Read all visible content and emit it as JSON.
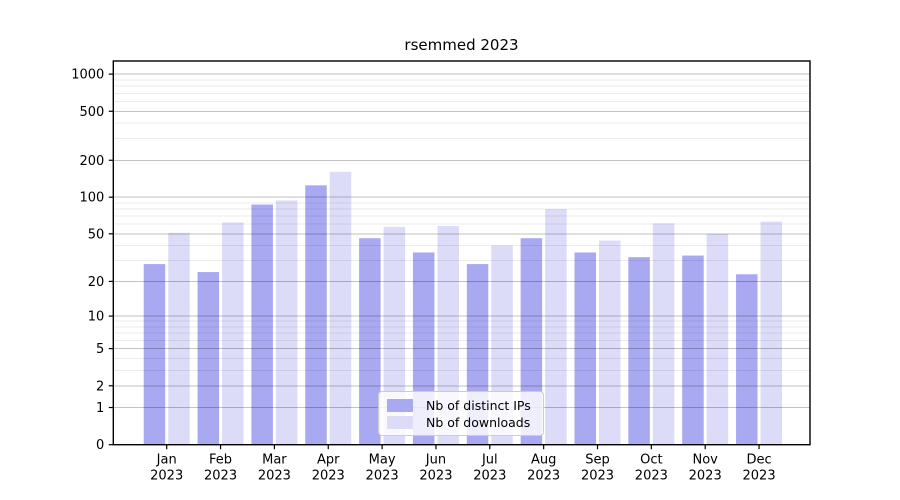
{
  "figure": {
    "title": "rsemmed 2023"
  },
  "chart_data": {
    "type": "bar",
    "title": "rsemmed 2023",
    "categories": [
      "Jan 2023",
      "Feb 2023",
      "Mar 2023",
      "Apr 2023",
      "May 2023",
      "Jun 2023",
      "Jul 2023",
      "Aug 2023",
      "Sep 2023",
      "Oct 2023",
      "Nov 2023",
      "Dec 2023"
    ],
    "series": [
      {
        "name": "Nb of distinct IPs",
        "color": "#a9a9f2",
        "values": [
          28,
          24,
          87,
          125,
          46,
          35,
          28,
          46,
          35,
          32,
          33,
          23
        ]
      },
      {
        "name": "Nb of downloads",
        "color": "#dcdcf8",
        "values": [
          51,
          62,
          94,
          161,
          57,
          58,
          40,
          80,
          44,
          61,
          50,
          63
        ]
      }
    ],
    "xlabel": "",
    "ylabel": "",
    "y_scale": "log10(1+v)",
    "ylim": [
      0,
      1280
    ],
    "y_ticks": [
      0,
      1,
      2,
      5,
      10,
      20,
      50,
      100,
      200,
      500,
      1000
    ],
    "y_minor_gridlines": [
      3,
      4,
      6,
      7,
      8,
      9,
      30,
      40,
      60,
      70,
      80,
      90,
      300,
      400,
      600,
      700,
      800,
      900
    ],
    "grid": true,
    "legend_position": "bottom-center"
  },
  "legend": {
    "items": [
      "Nb of distinct IPs",
      "Nb of downloads"
    ]
  },
  "colors": {
    "major_grid": "rgba(0,0,0,0.24)",
    "minor_grid": "rgba(0,0,0,0.08)",
    "axis_line": "#000000",
    "tick_text": "#000000",
    "legend_bg": "rgba(255,255,255,0.8)",
    "legend_border": "#cccccc"
  }
}
